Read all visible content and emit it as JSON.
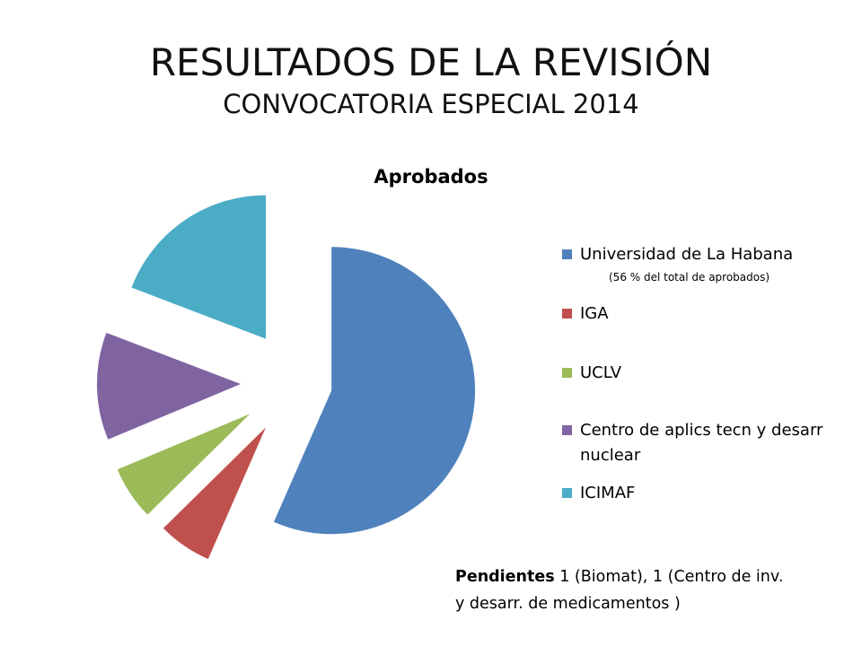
{
  "slide": {
    "title": "RESULTADOS DE LA REVISIÓN",
    "subtitle": "CONVOCATORIA ESPECIAL 2014"
  },
  "chart_data": {
    "type": "pie",
    "title": "Aprobados",
    "exploded": true,
    "legend_position": "right",
    "slices": [
      {
        "label": "Universidad de La Habana",
        "value": 56,
        "color": "#4F81BD",
        "note": "(56 % del total de aprobados)"
      },
      {
        "label": "IGA",
        "value": 6,
        "color": "#C0504D"
      },
      {
        "label": "UCLV",
        "value": 6,
        "color": "#9BBB59"
      },
      {
        "label": "Centro de aplics tecn y desarr nuclear",
        "value": 12,
        "color": "#8064A2"
      },
      {
        "label": "ICIMAF",
        "value": 19,
        "color": "#4BACC6"
      }
    ]
  },
  "footnote": {
    "bold": "Pendientes",
    "text": " 1 (Biomat), 1 (Centro de inv. y desarr. de medicamentos )"
  }
}
